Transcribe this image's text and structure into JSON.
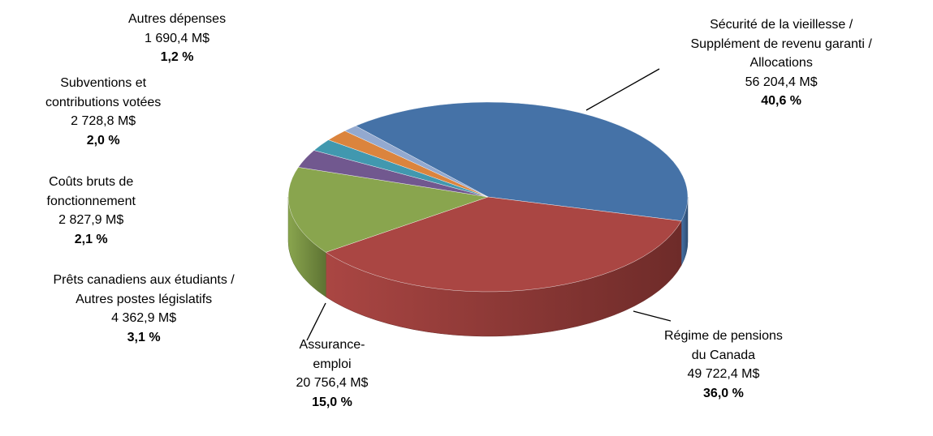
{
  "chart_data": {
    "type": "pie",
    "title": "",
    "style": "3d",
    "slices": [
      {
        "name_lines": [
          "Sécurité de la vieillesse /",
          "Supplément de revenu garanti /",
          "Allocations"
        ],
        "amount": "56 204,4 M$",
        "percent": "40,6 %",
        "value": 40.6,
        "color": "#4572A7",
        "side": "#2E4D72"
      },
      {
        "name_lines": [
          "Régime de pensions",
          "du Canada"
        ],
        "amount": "49 722,4 M$",
        "percent": "36,0 %",
        "value": 36.0,
        "color": "#AA4643",
        "side": "#6E2B29"
      },
      {
        "name_lines": [
          "Assurance-",
          "emploi"
        ],
        "amount": "20 756,4 M$",
        "percent": "15,0 %",
        "value": 15.0,
        "color": "#89A54E",
        "side": "#5E7333"
      },
      {
        "name_lines": [
          "Prêts canadiens aux étudiants /",
          "Autres postes législatifs"
        ],
        "amount": "4 362,9 M$",
        "percent": "3,1 %",
        "value": 3.1,
        "color": "#71588F",
        "side": "#4B3A60"
      },
      {
        "name_lines": [
          "Coûts bruts de",
          "fonctionnement"
        ],
        "amount": "2 827,9 M$",
        "percent": "2,1 %",
        "value": 2.1,
        "color": "#4198AF",
        "side": "#2A6575"
      },
      {
        "name_lines": [
          "Subventions et",
          "contributions votées"
        ],
        "amount": "2 728,8 M$",
        "percent": "2,0 %",
        "value": 2.0,
        "color": "#DB843D",
        "side": "#945827"
      },
      {
        "name_lines": [
          "Autres dépenses"
        ],
        "amount": "1 690,4 M$",
        "percent": "1,2 %",
        "value": 1.2,
        "color": "#93A9CF",
        "side": "#63728B"
      }
    ]
  }
}
